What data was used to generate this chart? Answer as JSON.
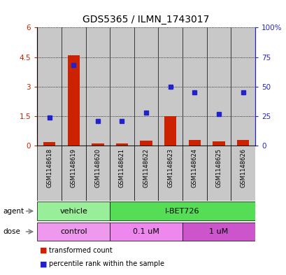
{
  "title": "GDS5365 / ILMN_1743017",
  "samples": [
    "GSM1148618",
    "GSM1148619",
    "GSM1148620",
    "GSM1148621",
    "GSM1148622",
    "GSM1148623",
    "GSM1148624",
    "GSM1148625",
    "GSM1148626"
  ],
  "transformed_counts": [
    0.18,
    4.58,
    0.1,
    0.12,
    0.27,
    1.5,
    0.3,
    0.23,
    0.28
  ],
  "percentile_ranks": [
    24,
    68,
    21,
    21,
    28,
    50,
    45,
    27,
    45
  ],
  "ylim_left": [
    0,
    6
  ],
  "ylim_right": [
    0,
    100
  ],
  "yticks_left": [
    0,
    1.5,
    3.0,
    4.5,
    6.0
  ],
  "yticks_right": [
    0,
    25,
    50,
    75,
    100
  ],
  "ytick_labels_left": [
    "0",
    "1.5",
    "3",
    "4.5",
    "6"
  ],
  "ytick_labels_right": [
    "0",
    "25",
    "50",
    "75",
    "100%"
  ],
  "bar_color": "#cc2200",
  "dot_color": "#2222cc",
  "sample_bg_color": "#c8c8c8",
  "left_label_color": "#cc2200",
  "right_label_color": "#2222cc",
  "agent_vehicle_color": "#99ee99",
  "agent_ibet_color": "#55dd55",
  "dose_control_color": "#ee99ee",
  "dose_01_color": "#ee88ee",
  "dose_1_color": "#cc55cc",
  "fig_bg_color": "#ffffff"
}
